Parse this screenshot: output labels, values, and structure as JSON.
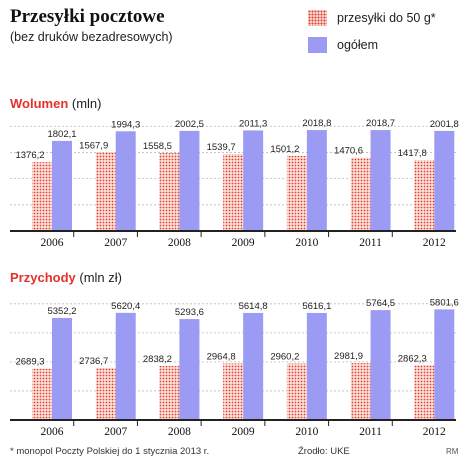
{
  "header": {
    "title": "Przesyłki pocztowe",
    "subtitle": "(bez druków bezadresowych)"
  },
  "legend": {
    "series1": "przesyłki do 50 g*",
    "series2": "ogółem"
  },
  "volume_section": {
    "title_strong": "Wolumen",
    "title_unit": "(mln)"
  },
  "revenue_section": {
    "title_strong": "Przychody",
    "title_unit": "(mln zł)"
  },
  "footer": {
    "footnote": "* monopol Poczty Polskiej do 1 stycznia 2013 r.",
    "source": "Źrodło: UKE",
    "credit": "RM"
  },
  "colors": {
    "series1": "#e43f2e",
    "series1_bg": "#fbe3dd",
    "series2": "#9b9bf3",
    "accent": "#e4312b"
  },
  "chart_data": [
    {
      "type": "bar",
      "title": "Wolumen",
      "ylabel": "(mln)",
      "categories": [
        "2006",
        "2007",
        "2008",
        "2009",
        "2010",
        "2011",
        "2012"
      ],
      "series": [
        {
          "name": "przesyłki do 50 g*",
          "values": [
            1376.2,
            1567.9,
            1558.5,
            1539.7,
            1501.2,
            1470.6,
            1417.8
          ],
          "labels": [
            "1376,2",
            "1567,9",
            "1558,5",
            "1539,7",
            "1501,2",
            "1470,6",
            "1417,8"
          ]
        },
        {
          "name": "ogółem",
          "values": [
            1802.1,
            1994.3,
            2002.5,
            2011.3,
            2018.8,
            2018.7,
            2001.8
          ],
          "labels": [
            "1802,1",
            "1994,3",
            "2002,5",
            "2011,3",
            "2018,8",
            "2018,7",
            "2001,8"
          ]
        }
      ],
      "ylim": [
        0,
        2200
      ],
      "grid": true
    },
    {
      "type": "bar",
      "title": "Przychody",
      "ylabel": "(mln zł)",
      "categories": [
        "2006",
        "2007",
        "2008",
        "2009",
        "2010",
        "2011",
        "2012"
      ],
      "series": [
        {
          "name": "przesyłki do 50 g*",
          "values": [
            2689.3,
            2736.7,
            2838.2,
            2964.8,
            2960.2,
            2981.9,
            2862.3
          ],
          "labels": [
            "2689,3",
            "2736,7",
            "2838,2",
            "2964,8",
            "2960,2",
            "2981,9",
            "2862,3"
          ]
        },
        {
          "name": "ogółem",
          "values": [
            5352.2,
            5620.4,
            5293.6,
            5614.8,
            5616.1,
            5764.5,
            5801.6
          ],
          "labels": [
            "5352,2",
            "5620,4",
            "5293,6",
            "5614,8",
            "5616,1",
            "5764,5",
            "5801,6"
          ]
        }
      ],
      "ylim": [
        0,
        6400
      ],
      "grid": true
    }
  ]
}
